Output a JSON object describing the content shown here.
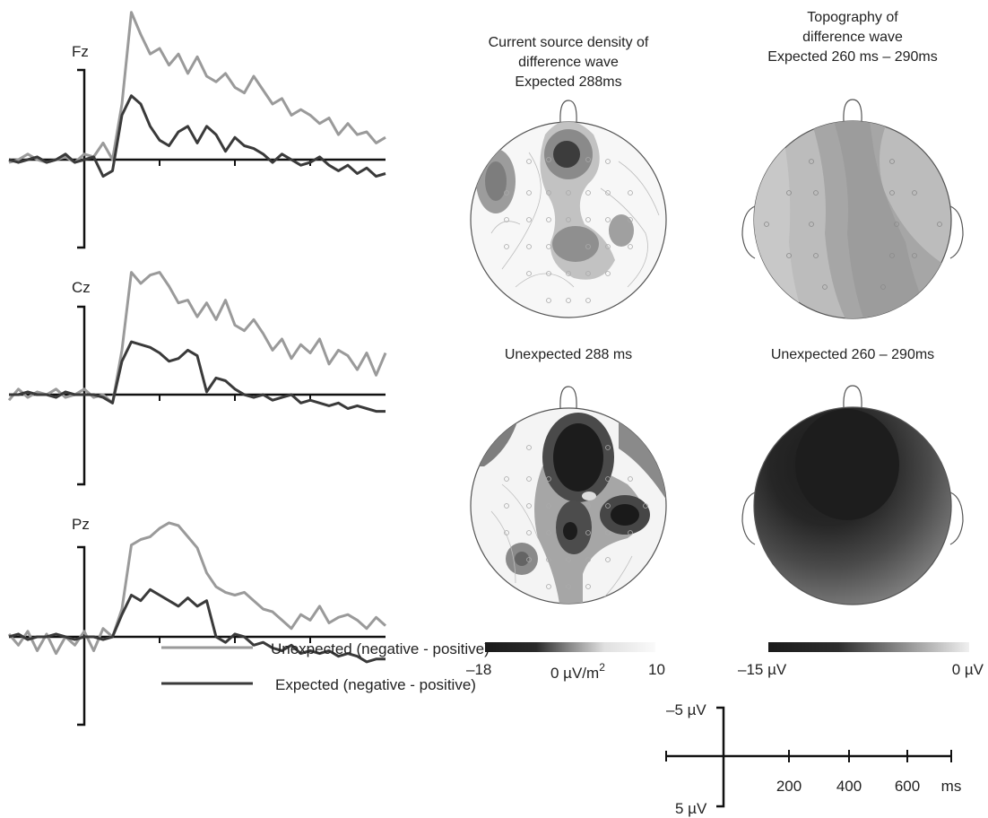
{
  "colors": {
    "unexpected": "#9a9a9a",
    "expected": "#3a3a3a",
    "axis": "#111111"
  },
  "chart_data": [
    {
      "type": "line",
      "panel": "Fz",
      "xlabel": "ms",
      "ylabel": "µV",
      "xlim": [
        -200,
        800
      ],
      "ylim": [
        5,
        -5
      ],
      "y_direction": "negative up",
      "series": [
        {
          "name": "Unexpected (negative - positive)",
          "x": [
            -200,
            -175,
            -150,
            -125,
            -100,
            -75,
            -50,
            -25,
            0,
            25,
            50,
            75,
            100,
            125,
            150,
            175,
            200,
            225,
            250,
            275,
            300,
            325,
            350,
            375,
            400,
            425,
            450,
            475,
            500,
            525,
            550,
            575,
            600,
            625,
            650,
            675,
            700,
            725,
            750,
            775,
            800
          ],
          "y": [
            0.1,
            0.0,
            -0.2,
            0.0,
            0.1,
            0.0,
            -0.1,
            0.1,
            -0.2,
            -0.1,
            -0.6,
            0.0,
            -2.0,
            -5.3,
            -4.5,
            -3.8,
            -4.0,
            -3.4,
            -3.8,
            -3.1,
            -3.7,
            -3.0,
            -2.8,
            -3.1,
            -2.6,
            -2.4,
            -3.0,
            -2.5,
            -2.0,
            -2.2,
            -1.6,
            -1.8,
            -1.6,
            -1.3,
            -1.5,
            -0.9,
            -1.3,
            -0.9,
            -1.0,
            -0.6,
            -0.8
          ]
        },
        {
          "name": "Expected (negative - positive)",
          "x": [
            -200,
            -175,
            -150,
            -125,
            -100,
            -75,
            -50,
            -25,
            0,
            25,
            50,
            75,
            100,
            125,
            150,
            175,
            200,
            225,
            250,
            275,
            300,
            325,
            350,
            375,
            400,
            425,
            450,
            475,
            500,
            525,
            550,
            575,
            600,
            625,
            650,
            675,
            700,
            725,
            750,
            775,
            800
          ],
          "y": [
            0.0,
            0.1,
            0.0,
            -0.1,
            0.1,
            0.0,
            -0.2,
            0.1,
            0.0,
            -0.1,
            0.6,
            0.4,
            -1.6,
            -2.3,
            -2.0,
            -1.2,
            -0.7,
            -0.5,
            -1.0,
            -1.2,
            -0.6,
            -1.2,
            -0.9,
            -0.3,
            -0.8,
            -0.5,
            -0.4,
            -0.2,
            0.1,
            -0.2,
            0.0,
            0.2,
            0.1,
            -0.1,
            0.2,
            0.4,
            0.2,
            0.5,
            0.3,
            0.6,
            0.5
          ]
        }
      ]
    },
    {
      "type": "line",
      "panel": "Cz",
      "xlabel": "ms",
      "ylabel": "µV",
      "xlim": [
        -200,
        800
      ],
      "ylim": [
        5,
        -5
      ],
      "y_direction": "negative up",
      "series": [
        {
          "name": "Unexpected (negative - positive)",
          "x": [
            -200,
            -175,
            -150,
            -125,
            -100,
            -75,
            -50,
            -25,
            0,
            25,
            50,
            75,
            100,
            125,
            150,
            175,
            200,
            225,
            250,
            275,
            300,
            325,
            350,
            375,
            400,
            425,
            450,
            475,
            500,
            525,
            550,
            575,
            600,
            625,
            650,
            675,
            700,
            725,
            750,
            775,
            800
          ],
          "y": [
            0.2,
            -0.2,
            0.1,
            -0.1,
            0.0,
            -0.2,
            0.1,
            0.0,
            -0.2,
            0.1,
            0.0,
            0.3,
            -1.6,
            -4.4,
            -4.0,
            -4.3,
            -4.4,
            -3.9,
            -3.3,
            -3.4,
            -2.8,
            -3.3,
            -2.7,
            -3.4,
            -2.5,
            -2.3,
            -2.7,
            -2.2,
            -1.6,
            -2.0,
            -1.3,
            -1.8,
            -1.5,
            -2.0,
            -1.1,
            -1.6,
            -1.4,
            -0.9,
            -1.5,
            -0.7,
            -1.5
          ]
        },
        {
          "name": "Expected (negative - positive)",
          "x": [
            -200,
            -175,
            -150,
            -125,
            -100,
            -75,
            -50,
            -25,
            0,
            25,
            50,
            75,
            100,
            125,
            150,
            175,
            200,
            225,
            250,
            275,
            300,
            325,
            350,
            375,
            400,
            425,
            450,
            475,
            500,
            525,
            550,
            575,
            600,
            625,
            650,
            675,
            700,
            725,
            750,
            775,
            800
          ],
          "y": [
            0.0,
            0.0,
            -0.1,
            0.0,
            0.0,
            0.1,
            -0.1,
            0.0,
            0.0,
            0.0,
            0.1,
            0.3,
            -1.2,
            -1.9,
            -1.8,
            -1.7,
            -1.5,
            -1.2,
            -1.3,
            -1.6,
            -1.4,
            -0.1,
            -0.6,
            -0.5,
            -0.2,
            0.0,
            0.1,
            0.0,
            0.2,
            0.1,
            0.0,
            0.3,
            0.2,
            0.3,
            0.4,
            0.3,
            0.5,
            0.4,
            0.5,
            0.6,
            0.6
          ]
        }
      ]
    },
    {
      "type": "line",
      "panel": "Pz",
      "xlabel": "ms",
      "ylabel": "µV",
      "xlim": [
        -200,
        800
      ],
      "ylim": [
        5,
        -5
      ],
      "y_direction": "negative up",
      "series": [
        {
          "name": "Unexpected (negative - positive)",
          "x": [
            -200,
            -175,
            -150,
            -125,
            -100,
            -75,
            -50,
            -25,
            0,
            25,
            50,
            75,
            100,
            125,
            150,
            175,
            200,
            225,
            250,
            275,
            300,
            325,
            350,
            375,
            400,
            425,
            450,
            475,
            500,
            525,
            550,
            575,
            600,
            625,
            650,
            675,
            700,
            725,
            750,
            775,
            800
          ],
          "y": [
            -0.1,
            0.3,
            -0.2,
            0.5,
            -0.1,
            0.6,
            0.0,
            0.3,
            -0.2,
            0.5,
            -0.3,
            0.0,
            -1.0,
            -3.3,
            -3.5,
            -3.6,
            -3.9,
            -4.1,
            -4.0,
            -3.6,
            -3.2,
            -2.3,
            -1.8,
            -1.6,
            -1.5,
            -1.6,
            -1.3,
            -1.0,
            -0.9,
            -0.6,
            -0.3,
            -0.8,
            -0.6,
            -1.1,
            -0.5,
            -0.7,
            -0.8,
            -0.6,
            -0.3,
            -0.7,
            -0.4
          ]
        },
        {
          "name": "Expected (negative - positive)",
          "x": [
            -200,
            -175,
            -150,
            -125,
            -100,
            -75,
            -50,
            -25,
            0,
            25,
            50,
            75,
            100,
            125,
            150,
            175,
            200,
            225,
            250,
            275,
            300,
            325,
            350,
            375,
            400,
            425,
            450,
            475,
            500,
            525,
            550,
            575,
            600,
            625,
            650,
            675,
            700,
            725,
            750,
            775,
            800
          ],
          "y": [
            0.0,
            -0.1,
            0.1,
            0.0,
            0.0,
            -0.1,
            0.0,
            0.1,
            0.0,
            0.0,
            0.1,
            0.0,
            -0.8,
            -1.5,
            -1.3,
            -1.7,
            -1.5,
            -1.3,
            -1.1,
            -1.4,
            -1.1,
            -1.3,
            0.0,
            0.2,
            -0.1,
            0.0,
            0.3,
            0.2,
            0.4,
            0.5,
            0.3,
            0.6,
            0.5,
            0.6,
            0.5,
            0.7,
            0.6,
            0.7,
            0.9,
            0.8,
            0.8
          ]
        }
      ]
    }
  ],
  "panels": {
    "fz": {
      "label": "Fz"
    },
    "cz": {
      "label": "Cz"
    },
    "pz": {
      "label": "Pz"
    }
  },
  "legend": {
    "unexpected": "Unexpected (negative - positive)",
    "expected": "Expected (negative - positive)"
  },
  "maps": {
    "csd_title_line1": "Current source density of",
    "csd_title_line2": "difference wave",
    "csd_title_line3": "Expected 288ms",
    "topo_title_line1": "Topography of",
    "topo_title_line2": "difference wave",
    "topo_title_line3": "Expected 260 ms – 290ms",
    "csd_unexpected_title": "Unexpected 288 ms",
    "topo_unexpected_title": "Unexpected 260 – 290ms"
  },
  "colorbars": {
    "csd": {
      "min_label": "–18",
      "mid_label": "0 µV/m",
      "mid_sup": "2",
      "max_label": "10"
    },
    "topo": {
      "min_label": "–15 µV",
      "max_label": "0 µV"
    }
  },
  "scale": {
    "top_label": "–5 µV",
    "bottom_label": "5 µV",
    "ticks": [
      "200",
      "400",
      "600"
    ],
    "unit_label": "ms"
  }
}
